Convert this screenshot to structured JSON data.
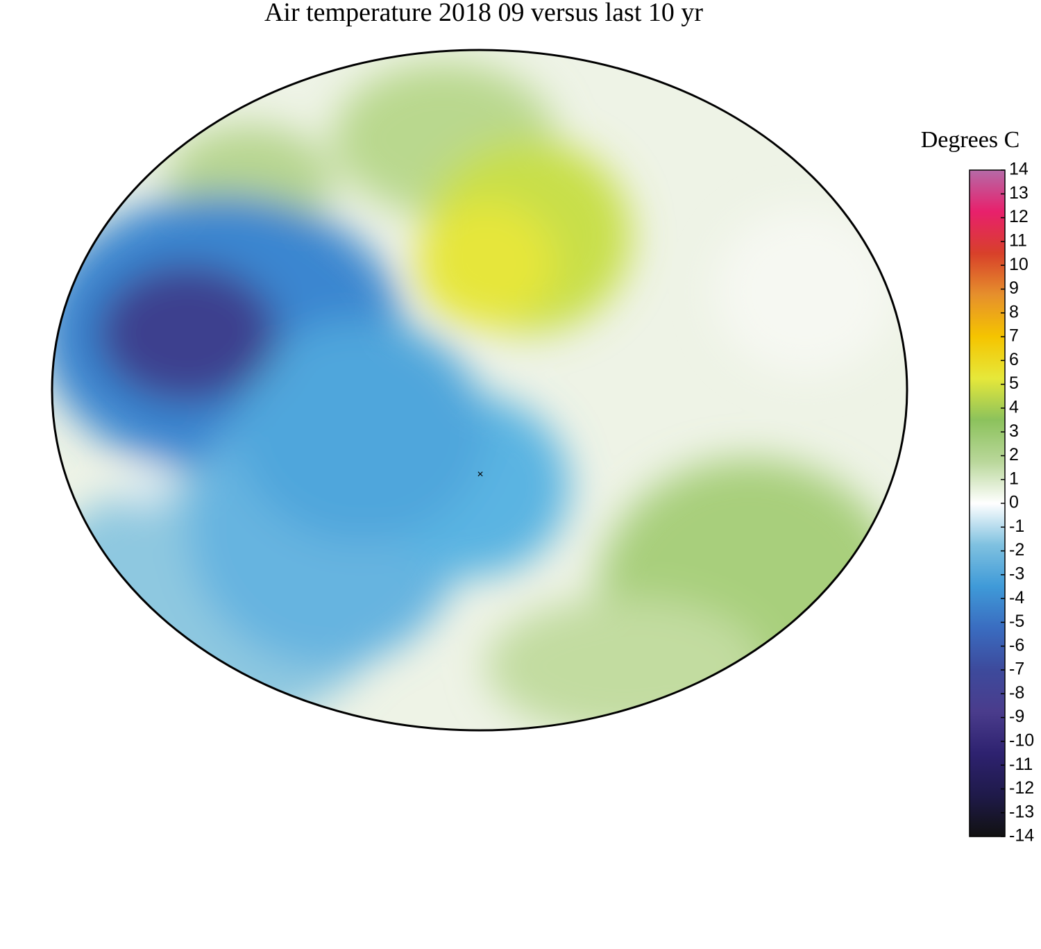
{
  "title": "Air temperature 2018 09 versus last 10 yr",
  "colorbar": {
    "label": "Degrees C",
    "lim": [
      -14,
      14
    ],
    "ticks": [
      14,
      13,
      12,
      11,
      10,
      9,
      8,
      7,
      6,
      5,
      4,
      3,
      2,
      1,
      0,
      -1,
      -2,
      -3,
      -4,
      -5,
      -6,
      -7,
      -8,
      -9,
      -10,
      -11,
      -12,
      -13,
      -14
    ],
    "colors": [
      "#111111",
      "#1f1a4a",
      "#2e2270",
      "#4a3c8c",
      "#3d4a9c",
      "#3a6cc0",
      "#3f9ad8",
      "#7fc1e0",
      "#ffffff",
      "#b9d79a",
      "#8cc25c",
      "#e6e83a",
      "#f5c400",
      "#e6902c",
      "#d8402a",
      "#e8206c",
      "#b56aa8"
    ]
  }
}
